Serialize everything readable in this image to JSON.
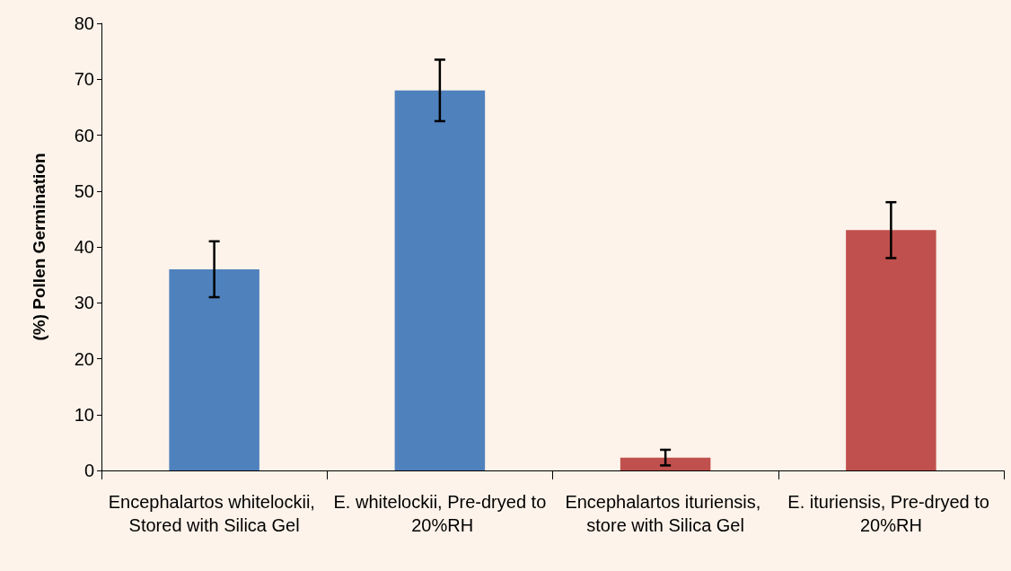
{
  "chart_data": {
    "type": "bar",
    "ylabel": "(%) Pollen Germination",
    "categories": [
      "Encephalartos whitelockii, Stored with Silica Gel",
      "E. whitelockii, Pre-dryed to 20%RH",
      "Encephalartos ituriensis, store with Silica Gel",
      "E. ituriensis, Pre-dryed to 20%RH"
    ],
    "values": [
      36,
      68,
      2.3,
      43
    ],
    "errors": [
      5,
      5.5,
      1.4,
      5
    ],
    "colors": [
      "#4f81bd",
      "#4f81bd",
      "#c0504d",
      "#c0504d"
    ],
    "ylim": [
      0,
      80
    ],
    "yticks": [
      0,
      10,
      20,
      30,
      40,
      50,
      60,
      70,
      80
    ],
    "grid": false
  }
}
